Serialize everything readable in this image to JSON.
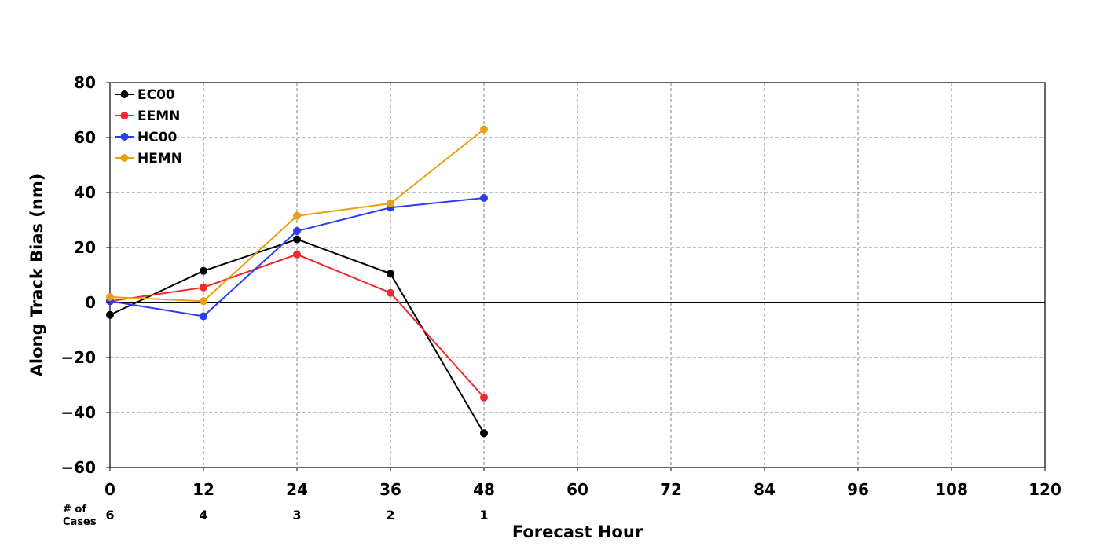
{
  "chart_data": {
    "type": "line",
    "xlabel": "Forecast Hour",
    "ylabel": "Along Track Bias (nm)",
    "xlim": [
      0,
      120
    ],
    "ylim": [
      -60,
      80
    ],
    "x_ticks": [
      "0",
      "12",
      "24",
      "36",
      "48",
      "60",
      "72",
      "84",
      "96",
      "108",
      "120"
    ],
    "y_ticks": [
      "80",
      "60",
      "40",
      "20",
      "0",
      "−20",
      "−40",
      "−60"
    ],
    "grid": true,
    "legend_position": "top-left",
    "series": [
      {
        "name": "EC00",
        "color": "#000000",
        "x": [
          0,
          12,
          24,
          36,
          48
        ],
        "values": [
          -4.5,
          11.5,
          23,
          10.5,
          -47.5
        ]
      },
      {
        "name": "EEMN",
        "color": "#f02a2a",
        "x": [
          0,
          12,
          24,
          36,
          48
        ],
        "values": [
          0.5,
          5.5,
          17.5,
          3.5,
          -34.5
        ]
      },
      {
        "name": "HC00",
        "color": "#2a3ef0",
        "x": [
          0,
          12,
          24,
          36,
          48
        ],
        "values": [
          0.5,
          -5,
          26,
          34.5,
          38
        ]
      },
      {
        "name": "HEMN",
        "color": "#e8a010",
        "x": [
          0,
          12,
          24,
          36,
          48
        ],
        "values": [
          2,
          0.5,
          31.5,
          36,
          63
        ]
      }
    ],
    "cases": {
      "label_line1": "# of",
      "label_line2": "Cases",
      "x": [
        0,
        12,
        24,
        36,
        48
      ],
      "values": [
        "6",
        "4",
        "3",
        "2",
        "1"
      ]
    }
  }
}
